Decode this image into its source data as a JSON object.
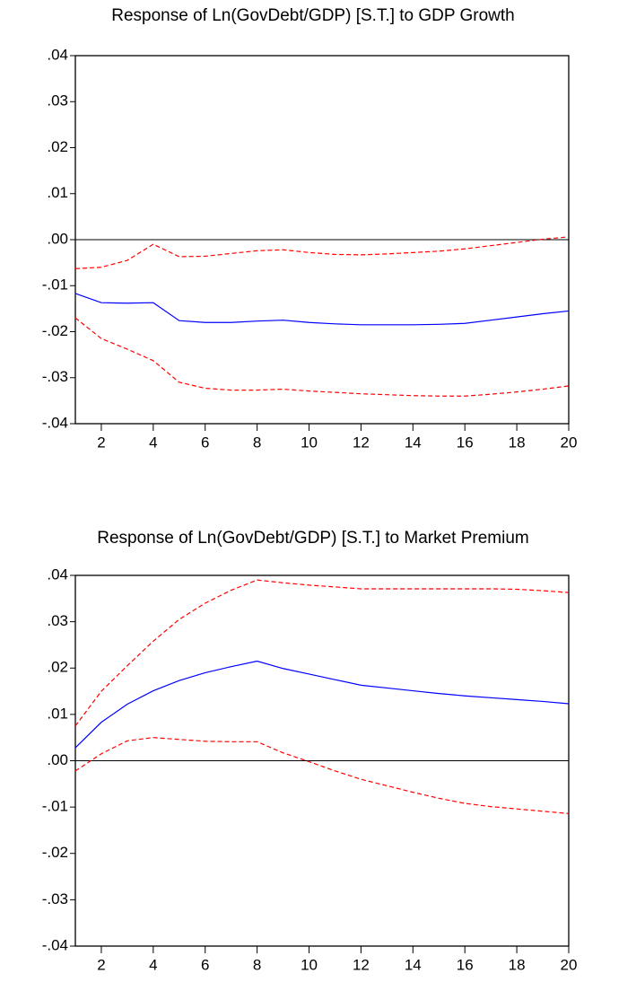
{
  "chart_data": [
    {
      "type": "line",
      "title": "Response of Ln(GovDebt/GDP) [S.T.] to GDP Growth",
      "x": [
        1,
        2,
        3,
        4,
        5,
        6,
        7,
        8,
        9,
        10,
        11,
        12,
        13,
        14,
        15,
        16,
        17,
        18,
        19,
        20
      ],
      "xlim": [
        1,
        20
      ],
      "xticks": [
        2,
        4,
        6,
        8,
        10,
        12,
        14,
        16,
        18,
        20
      ],
      "ylim": [
        -0.04,
        0.04
      ],
      "yticks": [
        {
          "value": -0.04,
          "label": "-.04"
        },
        {
          "value": -0.03,
          "label": "-.03"
        },
        {
          "value": -0.02,
          "label": "-.02"
        },
        {
          "value": -0.01,
          "label": "-.01"
        },
        {
          "value": 0,
          "label": ".00"
        },
        {
          "value": 0.01,
          "label": ".01"
        },
        {
          "value": 0.02,
          "label": ".02"
        },
        {
          "value": 0.03,
          "label": ".03"
        },
        {
          "value": 0.04,
          "label": ".04"
        }
      ],
      "zero_line": true,
      "series": [
        {
          "color": "#0000ff",
          "style": "solid",
          "values": [
            -0.0117,
            -0.0137,
            -0.0138,
            -0.0137,
            -0.0176,
            -0.018,
            -0.018,
            -0.0177,
            -0.0175,
            -0.018,
            -0.0183,
            -0.0185,
            -0.0185,
            -0.0185,
            -0.0184,
            -0.0182,
            -0.0175,
            -0.0168,
            -0.0161,
            -0.0155
          ]
        },
        {
          "color": "#ff0000",
          "style": "dashed",
          "values": [
            -0.0063,
            -0.006,
            -0.0045,
            -0.001,
            -0.0037,
            -0.0036,
            -0.003,
            -0.0024,
            -0.0022,
            -0.0028,
            -0.0032,
            -0.0033,
            -0.0031,
            -0.0028,
            -0.0025,
            -0.002,
            -0.0013,
            -0.0006,
            0.0001,
            0.0006
          ]
        },
        {
          "color": "#ff0000",
          "style": "dashed",
          "values": [
            -0.017,
            -0.0215,
            -0.0238,
            -0.0263,
            -0.031,
            -0.0323,
            -0.0327,
            -0.0327,
            -0.0325,
            -0.0329,
            -0.0332,
            -0.0335,
            -0.0337,
            -0.0339,
            -0.034,
            -0.034,
            -0.0336,
            -0.0331,
            -0.0325,
            -0.0318
          ]
        }
      ]
    },
    {
      "type": "line",
      "title": "Response of Ln(GovDebt/GDP) [S.T.] to Market Premium",
      "x": [
        1,
        2,
        3,
        4,
        5,
        6,
        7,
        8,
        9,
        10,
        11,
        12,
        13,
        14,
        15,
        16,
        17,
        18,
        19,
        20
      ],
      "xlim": [
        1,
        20
      ],
      "xticks": [
        2,
        4,
        6,
        8,
        10,
        12,
        14,
        16,
        18,
        20
      ],
      "ylim": [
        -0.04,
        0.04
      ],
      "yticks": [
        {
          "value": -0.04,
          "label": "-.04"
        },
        {
          "value": -0.03,
          "label": "-.03"
        },
        {
          "value": -0.02,
          "label": "-.02"
        },
        {
          "value": -0.01,
          "label": "-.01"
        },
        {
          "value": 0,
          "label": ".00"
        },
        {
          "value": 0.01,
          "label": ".01"
        },
        {
          "value": 0.02,
          "label": ".02"
        },
        {
          "value": 0.03,
          "label": ".03"
        },
        {
          "value": 0.04,
          "label": ".04"
        }
      ],
      "zero_line": true,
      "series": [
        {
          "color": "#0000ff",
          "style": "solid",
          "values": [
            0.0028,
            0.0083,
            0.0122,
            0.0151,
            0.0173,
            0.019,
            0.0203,
            0.0215,
            0.0199,
            0.0187,
            0.0175,
            0.0163,
            0.0157,
            0.0151,
            0.0145,
            0.014,
            0.0136,
            0.0132,
            0.0128,
            0.0123
          ]
        },
        {
          "color": "#ff0000",
          "style": "dashed",
          "values": [
            0.0075,
            0.015,
            0.0205,
            0.0258,
            0.0305,
            0.034,
            0.0368,
            0.039,
            0.0384,
            0.0379,
            0.0375,
            0.0371,
            0.0371,
            0.0371,
            0.0371,
            0.0371,
            0.0371,
            0.037,
            0.0367,
            0.0363
          ]
        },
        {
          "color": "#ff0000",
          "style": "dashed",
          "values": [
            -0.0022,
            0.0015,
            0.0043,
            0.005,
            0.0046,
            0.0042,
            0.0041,
            0.0041,
            0.0017,
            -0.0002,
            -0.0022,
            -0.004,
            -0.0054,
            -0.0068,
            -0.0081,
            -0.0092,
            -0.0099,
            -0.0104,
            -0.0109,
            -0.0114
          ]
        }
      ]
    }
  ]
}
